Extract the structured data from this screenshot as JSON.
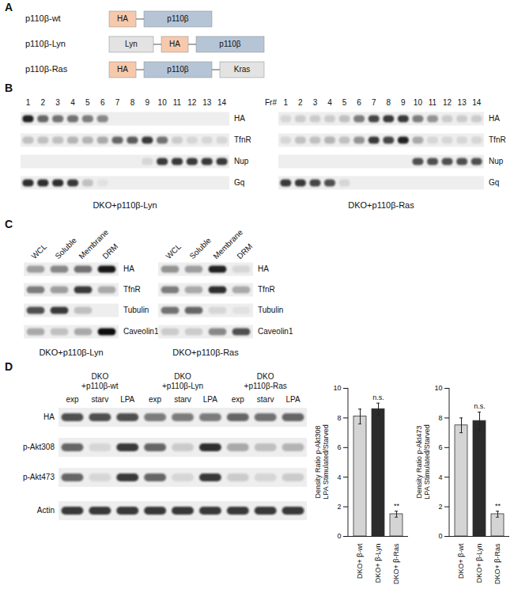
{
  "panels": {
    "A": {
      "letter": "A",
      "constructs": [
        {
          "name": "p110β-wt",
          "parts": [
            {
              "label": "HA",
              "kind": "tag"
            },
            {
              "label": "p110β",
              "kind": "kinase"
            }
          ]
        },
        {
          "name": "p110β-Lyn",
          "parts": [
            {
              "label": "Lyn",
              "kind": "anchor"
            },
            {
              "label": "HA",
              "kind": "tag"
            },
            {
              "label": "p110β",
              "kind": "kinase"
            }
          ]
        },
        {
          "name": "p110β-Ras",
          "parts": [
            {
              "label": "HA",
              "kind": "tag"
            },
            {
              "label": "p110β",
              "kind": "kinase"
            },
            {
              "label": "Kras",
              "kind": "anchor"
            }
          ]
        }
      ]
    },
    "B": {
      "letter": "B",
      "blots": [
        {
          "caption": "DKO+p110β-Lyn",
          "lanes": [
            1,
            2,
            3,
            4,
            5,
            6,
            7,
            8,
            9,
            10,
            11,
            12,
            13,
            14
          ],
          "rows": [
            {
              "label": "HA",
              "bands": [
                0.9,
                0.6,
                0.55,
                0.55,
                0.5,
                0.45,
                0,
                0,
                0,
                0,
                0,
                0,
                0,
                0
              ]
            },
            {
              "label": "TfnR",
              "bands": [
                0.2,
                0.2,
                0.2,
                0.25,
                0.25,
                0.3,
                0.6,
                0.65,
                0.8,
                0.55,
                0.15,
                0.1,
                0.1,
                0.1
              ]
            },
            {
              "label": "Nup",
              "bands": [
                0,
                0,
                0,
                0,
                0,
                0,
                0,
                0,
                0.1,
                0.8,
                0.8,
                0.8,
                0.8,
                0.8
              ]
            },
            {
              "label": "Gq",
              "bands": [
                0.85,
                0.85,
                0.85,
                0.8,
                0.2,
                0.05,
                0,
                0,
                0,
                0,
                0,
                0,
                0,
                0
              ]
            }
          ]
        },
        {
          "caption": "DKO+p110β-Ras",
          "lane_header": "Fr#",
          "lanes": [
            1,
            2,
            3,
            4,
            5,
            6,
            7,
            8,
            9,
            10,
            11,
            12,
            13,
            14
          ],
          "rows": [
            {
              "label": "HA",
              "bands": [
                0.1,
                0.15,
                0.15,
                0.15,
                0.2,
                0.5,
                0.75,
                0.8,
                0.8,
                0.5,
                0.4,
                0.15,
                0.15,
                0.15
              ]
            },
            {
              "label": "TfnR",
              "bands": [
                0.1,
                0.2,
                0.2,
                0.25,
                0.2,
                0.4,
                0.8,
                0.75,
                0.9,
                0.3,
                0.1,
                0.1,
                0.1,
                0.1
              ]
            },
            {
              "label": "Nup",
              "bands": [
                0,
                0,
                0,
                0,
                0,
                0,
                0,
                0,
                0,
                0.7,
                0.7,
                0.7,
                0.7,
                0.7
              ]
            },
            {
              "label": "Gq",
              "bands": [
                0.8,
                0.8,
                0.75,
                0.7,
                0.1,
                0,
                0,
                0,
                0,
                0,
                0,
                0,
                0,
                0
              ]
            }
          ]
        }
      ]
    },
    "C": {
      "letter": "C",
      "blots": [
        {
          "caption": "DKO+p110β-Lyn",
          "lanes": [
            "WCL",
            "Soluble",
            "Membrane",
            "DRM"
          ],
          "rows": [
            {
              "label": "HA",
              "bands": [
                0.35,
                0.45,
                0.55,
                0.95
              ]
            },
            {
              "label": "TfnR",
              "bands": [
                0.5,
                0.35,
                0.8,
                0.3
              ]
            },
            {
              "label": "Tubulin",
              "bands": [
                0.7,
                0.8,
                0.2,
                0
              ]
            },
            {
              "label": "Caveolin1",
              "bands": [
                0.3,
                0.2,
                0.3,
                1
              ]
            }
          ]
        },
        {
          "caption": "DKO+p110β-Ras",
          "lanes": [
            "WCL",
            "Soluble",
            "Membrane",
            "DRM"
          ],
          "rows": [
            {
              "label": "HA",
              "bands": [
                0.4,
                0.35,
                0.9,
                0.1
              ]
            },
            {
              "label": "TfnR",
              "bands": [
                0.5,
                0.3,
                0.85,
                0.3
              ]
            },
            {
              "label": "Tubulin",
              "bands": [
                0.55,
                0.6,
                0.1,
                0.05
              ]
            },
            {
              "label": "Caveolin1",
              "bands": [
                0.15,
                0.15,
                0.45,
                0.7
              ]
            }
          ]
        }
      ]
    },
    "D": {
      "letter": "D",
      "groups": [
        {
          "header": [
            "DKO",
            "+p110β-wt"
          ],
          "lanes": [
            "exp",
            "starv",
            "LPA"
          ]
        },
        {
          "header": [
            "DKO",
            "+p110β-Lyn"
          ],
          "lanes": [
            "exp",
            "starv",
            "LPA"
          ]
        },
        {
          "header": [
            "DKO",
            "+p110β-Ras"
          ],
          "lanes": [
            "exp",
            "starv",
            "LPA"
          ]
        }
      ],
      "rows": [
        {
          "label": "HA",
          "bands": [
            0.7,
            0.7,
            0.7,
            0.5,
            0.5,
            0.5,
            0.6,
            0.55,
            0.6
          ]
        },
        {
          "label": "p-Akt308",
          "bands": [
            0.6,
            0.1,
            0.8,
            0.6,
            0.15,
            0.85,
            0.3,
            0.2,
            0.25
          ]
        },
        {
          "label": "p-Akt473",
          "bands": [
            0.6,
            0.1,
            0.8,
            0.6,
            0.1,
            0.8,
            0.15,
            0.1,
            0.15
          ]
        },
        {
          "label": "Actin",
          "bands": [
            0.8,
            0.8,
            0.8,
            0.8,
            0.8,
            0.8,
            0.8,
            0.8,
            0.8
          ]
        }
      ]
    }
  },
  "chart_data": [
    {
      "type": "bar",
      "y_label": [
        "Density Ratio p-Akt308",
        "LPA Stimulated/Starved"
      ],
      "categories": [
        "DKO+ β-wt",
        "DKO+ β-Lyn",
        "DKO+ β-Ras"
      ],
      "values": [
        8.1,
        8.6,
        1.5
      ],
      "errors": [
        0.5,
        0.4,
        0.2
      ],
      "annotations": [
        null,
        "n.s.",
        "**"
      ],
      "colors": [
        "#d4d4d4",
        "#2b2b2b",
        "#d4d4d4"
      ],
      "ylim": [
        0,
        10
      ],
      "yticks": [
        0,
        2,
        4,
        6,
        8,
        10
      ]
    },
    {
      "type": "bar",
      "y_label": [
        "Density Ratio p-Akt473",
        "LPA Stimulated/Starved"
      ],
      "categories": [
        "DKO+ β-wt",
        "DKO+ β-Lyn",
        "DKO+ β-Ras"
      ],
      "values": [
        7.5,
        7.8,
        1.5
      ],
      "errors": [
        0.5,
        0.6,
        0.2
      ],
      "annotations": [
        null,
        "n.s.",
        "**"
      ],
      "colors": [
        "#d4d4d4",
        "#2b2b2b",
        "#d4d4d4"
      ],
      "ylim": [
        0,
        10
      ],
      "yticks": [
        0,
        2,
        4,
        6,
        8,
        10
      ]
    }
  ]
}
